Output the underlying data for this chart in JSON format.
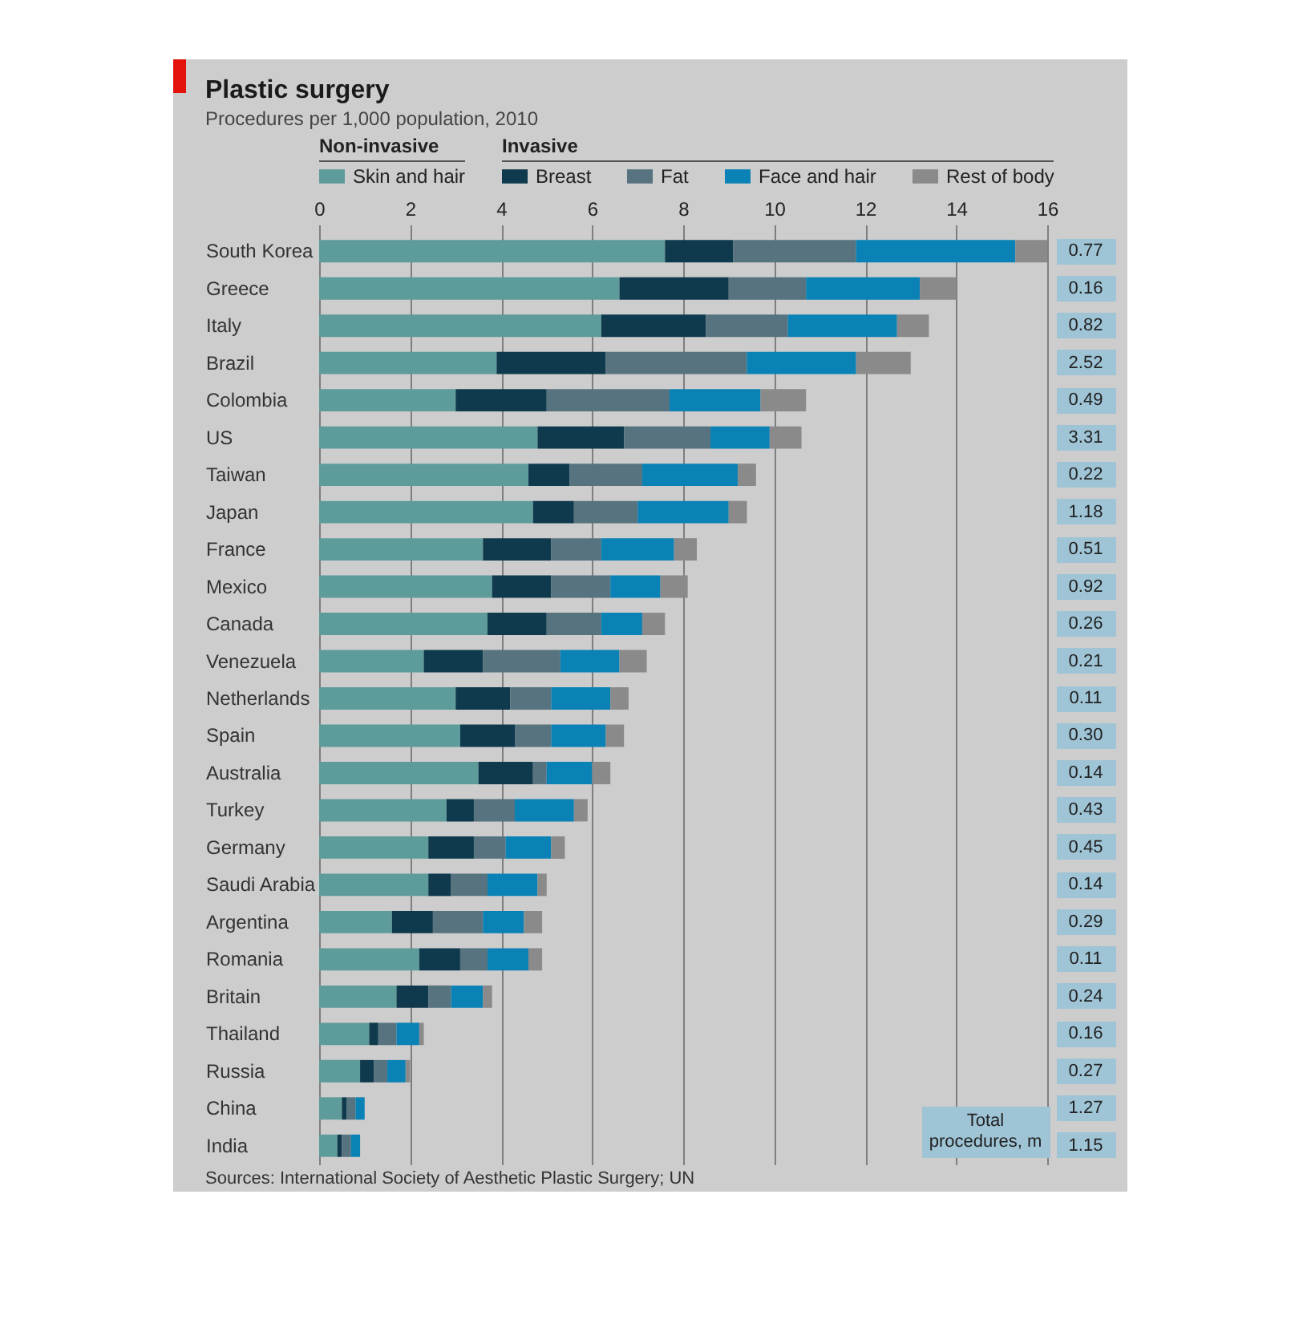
{
  "chart_data": {
    "type": "bar",
    "orientation": "horizontal",
    "stacked": true,
    "title": "Plastic surgery",
    "subtitle": "Procedures per 1,000 population, 2010",
    "categories": [
      "South Korea",
      "Greece",
      "Italy",
      "Brazil",
      "Colombia",
      "US",
      "Taiwan",
      "Japan",
      "France",
      "Mexico",
      "Canada",
      "Venezuela",
      "Netherlands",
      "Spain",
      "Australia",
      "Turkey",
      "Germany",
      "Saudi Arabia",
      "Argentina",
      "Romania",
      "Britain",
      "Thailand",
      "Russia",
      "China",
      "India"
    ],
    "series": [
      {
        "name": "Skin and hair",
        "color": "#5e9b9b",
        "values": [
          7.6,
          6.6,
          6.2,
          3.9,
          3.0,
          4.8,
          4.6,
          4.7,
          3.6,
          3.8,
          3.7,
          2.3,
          3.0,
          3.1,
          3.5,
          2.8,
          2.4,
          2.4,
          1.6,
          2.2,
          1.7,
          1.1,
          0.9,
          0.5,
          0.4
        ]
      },
      {
        "name": "Breast",
        "color": "#0f3a4d",
        "values": [
          1.5,
          2.4,
          2.3,
          2.4,
          2.0,
          1.9,
          0.9,
          0.9,
          1.5,
          1.3,
          1.3,
          1.3,
          1.2,
          1.2,
          1.2,
          0.6,
          1.0,
          0.5,
          0.9,
          0.9,
          0.7,
          0.2,
          0.3,
          0.1,
          0.1
        ]
      },
      {
        "name": "Fat",
        "color": "#56737f",
        "values": [
          2.7,
          1.7,
          1.8,
          3.1,
          2.7,
          1.9,
          1.6,
          1.4,
          1.1,
          1.3,
          1.2,
          1.7,
          0.9,
          0.8,
          0.3,
          0.9,
          0.7,
          0.8,
          1.1,
          0.6,
          0.5,
          0.4,
          0.3,
          0.2,
          0.2
        ]
      },
      {
        "name": "Face and hair",
        "color": "#0a82b5",
        "values": [
          3.5,
          2.5,
          2.4,
          2.4,
          2.0,
          1.3,
          2.1,
          2.0,
          1.6,
          1.1,
          0.9,
          1.3,
          1.3,
          1.2,
          1.0,
          1.3,
          1.0,
          1.1,
          0.9,
          0.9,
          0.7,
          0.5,
          0.4,
          0.2,
          0.2
        ]
      },
      {
        "name": "Rest of body",
        "color": "#8a8a8a",
        "values": [
          0.7,
          0.8,
          0.7,
          1.2,
          1.0,
          0.7,
          0.4,
          0.4,
          0.5,
          0.6,
          0.5,
          0.6,
          0.4,
          0.4,
          0.4,
          0.3,
          0.3,
          0.2,
          0.4,
          0.3,
          0.2,
          0.1,
          0.1,
          0.0,
          0.0
        ]
      }
    ],
    "xlim": [
      0,
      16
    ],
    "xticks": [
      0,
      2,
      4,
      6,
      8,
      10,
      12,
      14,
      16
    ],
    "grid": "x",
    "legend": "top",
    "annotations": [
      "Non-invasive",
      "Invasive",
      "0.77",
      "0.16",
      "0.82",
      "2.52",
      "0.49",
      "3.31",
      "0.22",
      "1.18",
      "0.51",
      "0.92",
      "0.26",
      "0.21",
      "0.11",
      "0.30",
      "0.14",
      "0.43",
      "0.45",
      "0.14",
      "0.29",
      "0.11",
      "0.24",
      "0.16",
      "0.27",
      "1.27",
      "1.15",
      "Total procedures, m",
      "Sources: International Society of Aesthetic Plastic Surgery; UN"
    ]
  }
}
